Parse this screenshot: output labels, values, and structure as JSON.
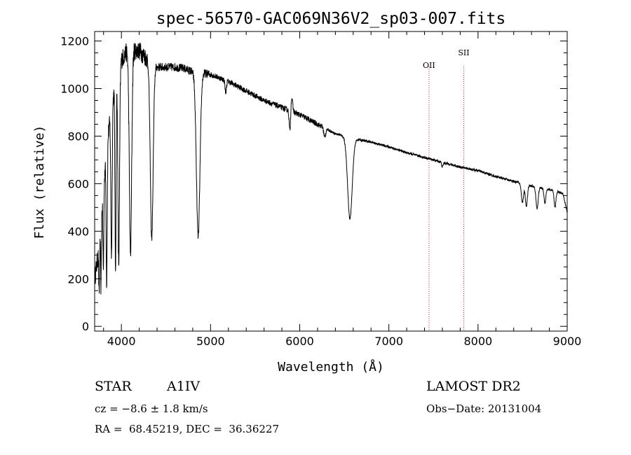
{
  "chart_data": {
    "type": "line",
    "title": "spec-56570-GAC069N36V2_sp03-007.fits",
    "xlabel": "Wavelength (Å)",
    "ylabel": "Flux (relative)",
    "xlim": [
      3700,
      9000
    ],
    "ylim": [
      -20,
      1240
    ],
    "x_ticks": [
      4000,
      5000,
      6000,
      7000,
      8000,
      9000
    ],
    "y_ticks": [
      0,
      200,
      400,
      600,
      800,
      1000,
      1200
    ],
    "x_tick_labels": [
      "4000",
      "5000",
      "6000",
      "7000",
      "8000",
      "9000"
    ],
    "y_tick_labels": [
      "0",
      "200",
      "400",
      "600",
      "800",
      "1000",
      "1200"
    ],
    "grid": false,
    "series": [
      {
        "continuum": {
          "x": [
            3700,
            3760,
            3800,
            3850,
            3900,
            3950,
            4000,
            4050,
            4100,
            4150,
            4200,
            4300,
            4400,
            4500,
            4600,
            4700,
            4800,
            5000,
            5200,
            5400,
            5600,
            5800,
            6000,
            6200,
            6400,
            6600,
            6800,
            7000,
            7200,
            7400,
            7600,
            7800,
            8000,
            8200,
            8400,
            8600,
            8800,
            8950,
            9000
          ],
          "y": [
            200,
            350,
            600,
            800,
            950,
            1050,
            1120,
            1150,
            1160,
            1160,
            1160,
            1120,
            1090,
            1090,
            1090,
            1085,
            1070,
            1060,
            1030,
            990,
            950,
            920,
            890,
            850,
            810,
            790,
            775,
            755,
            730,
            710,
            690,
            670,
            655,
            630,
            610,
            590,
            575,
            560,
            480
          ]
        },
        "lines": [
          {
            "x": 3750,
            "depth": 200,
            "width": 4
          },
          {
            "x": 3771,
            "depth": 250,
            "width": 4
          },
          {
            "x": 3798,
            "depth": 350,
            "width": 5
          },
          {
            "x": 3835,
            "depth": 550,
            "width": 6
          },
          {
            "x": 3889,
            "depth": 620,
            "width": 7
          },
          {
            "x": 3934,
            "depth": 780,
            "width": 6
          },
          {
            "x": 3970,
            "depth": 820,
            "width": 9
          },
          {
            "x": 4102,
            "depth": 860,
            "width": 13
          },
          {
            "x": 4340,
            "depth": 740,
            "width": 16
          },
          {
            "x": 4861,
            "depth": 690,
            "width": 20
          },
          {
            "x": 5170,
            "depth": 50,
            "width": 8
          },
          {
            "x": 5890,
            "depth": 90,
            "width": 8
          },
          {
            "x": 6280,
            "depth": 40,
            "width": 10
          },
          {
            "x": 6563,
            "depth": 340,
            "width": 26
          },
          {
            "x": 7600,
            "depth": 20,
            "width": 8
          },
          {
            "x": 8498,
            "depth": 80,
            "width": 12
          },
          {
            "x": 8542,
            "depth": 90,
            "width": 12
          },
          {
            "x": 8662,
            "depth": 90,
            "width": 12
          },
          {
            "x": 8750,
            "depth": 60,
            "width": 10
          },
          {
            "x": 8863,
            "depth": 70,
            "width": 10
          }
        ],
        "emission": [
          {
            "x": 5910,
            "height": 60,
            "width": 10
          }
        ]
      }
    ],
    "annotations": [
      {
        "label": "OII",
        "x": 7450
      },
      {
        "label": "SII",
        "x": 7840
      }
    ]
  },
  "info": {
    "class_label": "STAR",
    "subclass": "A1IV",
    "survey": "LAMOST DR2",
    "cz": "cz = −8.6 ± 1.8 km/s",
    "obs_date": "Obs−Date: 20131004",
    "coords": "RA =  68.45219, DEC =  36.36227"
  },
  "colors": {
    "spectrum": "#000000",
    "marker_lines": "#cc3333",
    "axes": "#000000",
    "background": "#ffffff"
  }
}
